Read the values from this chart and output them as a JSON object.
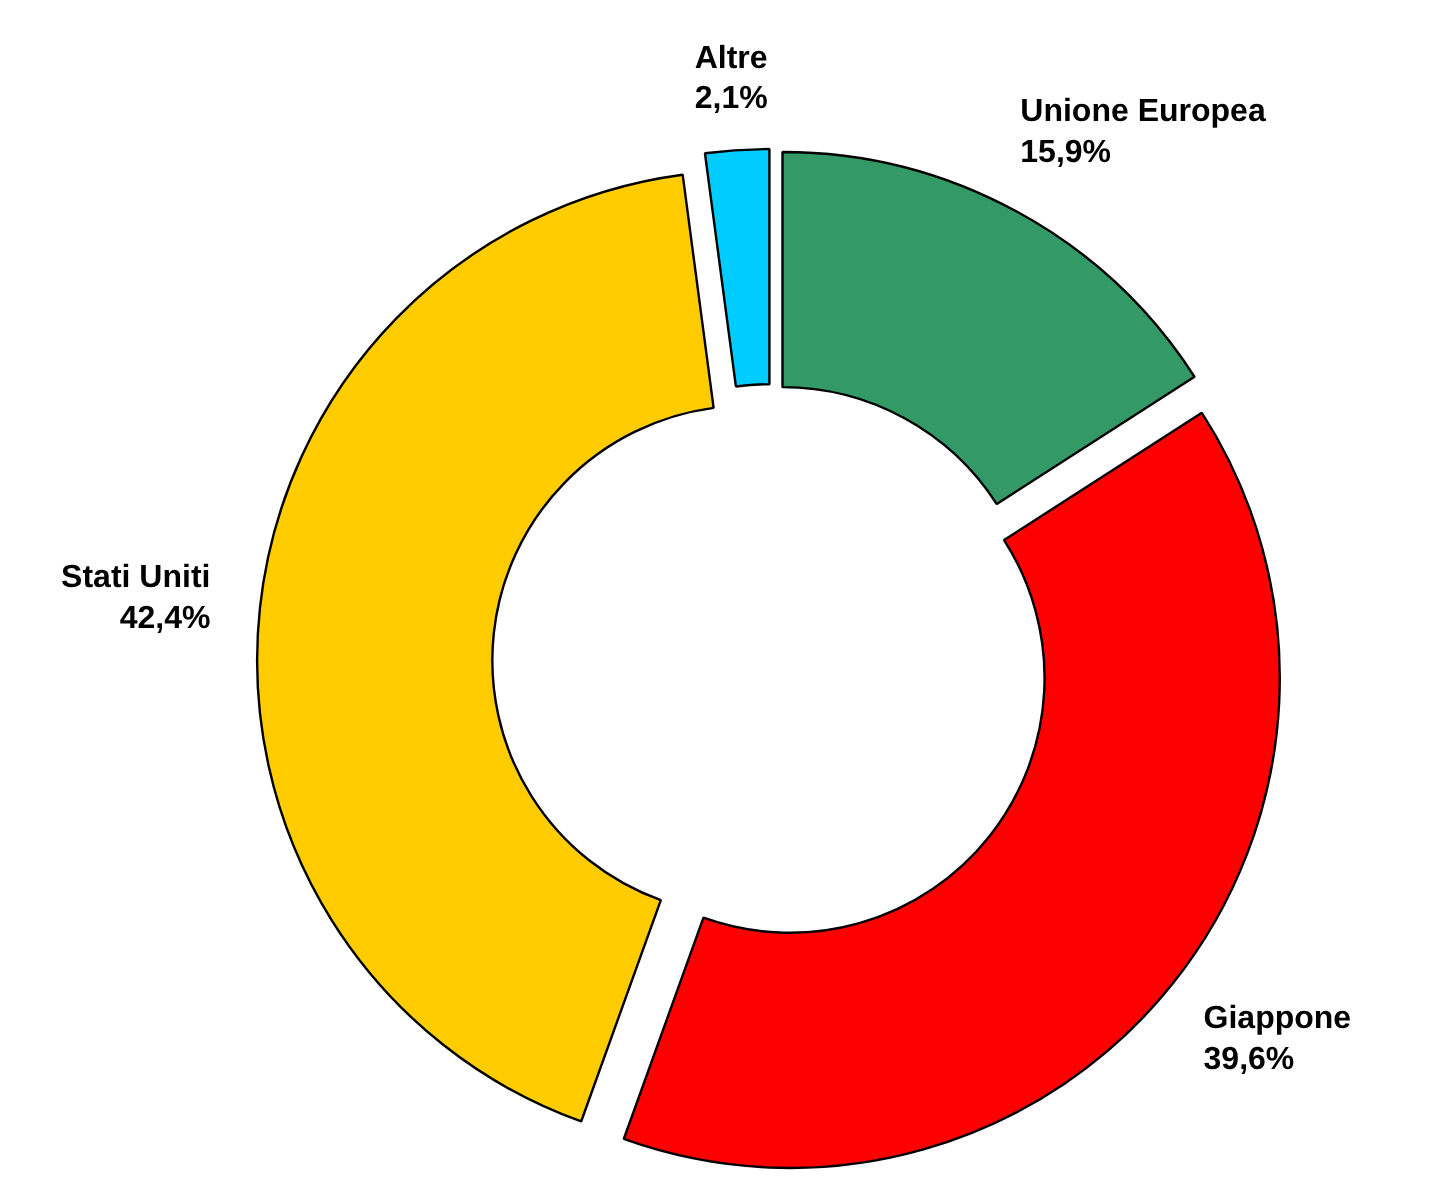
{
  "chart_data": {
    "type": "donut",
    "categories": [
      "Unione Europea",
      "Giappone",
      "Stati Uniti",
      "Altre"
    ],
    "values": [
      15.9,
      39.6,
      42.4,
      2.1
    ],
    "colors": [
      "#339966",
      "#ff0000",
      "#ffcc00",
      "#00ccff"
    ],
    "value_labels": [
      "15,9%",
      "39,6%",
      "42,4%",
      "2,1%"
    ]
  }
}
